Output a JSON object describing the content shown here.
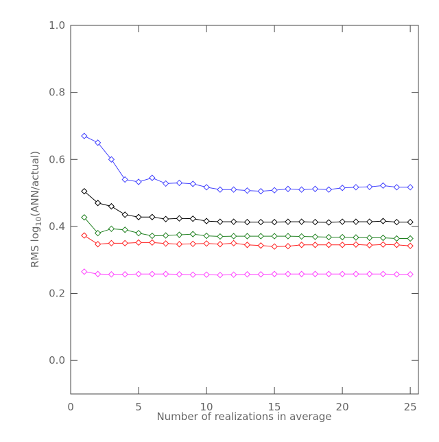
{
  "chart_data": {
    "type": "line",
    "xlabel": "Number of realizations in average",
    "ylabel": {
      "main": "RMS log",
      "sub": "10",
      "rest": "(ANN/actual)"
    },
    "x": [
      1,
      2,
      3,
      4,
      5,
      6,
      7,
      8,
      9,
      10,
      11,
      12,
      13,
      14,
      15,
      16,
      17,
      18,
      19,
      20,
      21,
      22,
      23,
      24,
      25
    ],
    "series": [
      {
        "color": "#4040ff",
        "values": [
          0.67,
          0.65,
          0.6,
          0.54,
          0.533,
          0.545,
          0.528,
          0.53,
          0.527,
          0.517,
          0.51,
          0.51,
          0.507,
          0.505,
          0.508,
          0.512,
          0.51,
          0.512,
          0.51,
          0.515,
          0.517,
          0.518,
          0.522,
          0.517,
          0.517
        ]
      },
      {
        "color": "#000000",
        "values": [
          0.505,
          0.47,
          0.46,
          0.435,
          0.428,
          0.428,
          0.422,
          0.424,
          0.423,
          0.416,
          0.414,
          0.414,
          0.413,
          0.413,
          0.413,
          0.414,
          0.414,
          0.413,
          0.412,
          0.414,
          0.414,
          0.414,
          0.416,
          0.413,
          0.413
        ]
      },
      {
        "color": "#208020",
        "values": [
          0.427,
          0.38,
          0.393,
          0.39,
          0.38,
          0.372,
          0.373,
          0.375,
          0.377,
          0.372,
          0.37,
          0.371,
          0.371,
          0.371,
          0.371,
          0.371,
          0.37,
          0.369,
          0.368,
          0.368,
          0.367,
          0.366,
          0.366,
          0.364,
          0.364
        ]
      },
      {
        "color": "#ff2020",
        "values": [
          0.373,
          0.347,
          0.35,
          0.35,
          0.352,
          0.352,
          0.349,
          0.347,
          0.348,
          0.349,
          0.347,
          0.35,
          0.345,
          0.343,
          0.34,
          0.341,
          0.345,
          0.345,
          0.345,
          0.345,
          0.346,
          0.344,
          0.346,
          0.345,
          0.342
        ]
      },
      {
        "color": "#ff40ff",
        "values": [
          0.265,
          0.258,
          0.257,
          0.257,
          0.258,
          0.258,
          0.258,
          0.257,
          0.256,
          0.256,
          0.255,
          0.256,
          0.257,
          0.257,
          0.258,
          0.258,
          0.258,
          0.258,
          0.258,
          0.258,
          0.258,
          0.258,
          0.258,
          0.257,
          0.257
        ]
      }
    ],
    "marker": "diamond",
    "xlim": [
      0,
      25.6
    ],
    "ylim": [
      -0.1,
      1.0
    ],
    "xticks": [
      0,
      5,
      10,
      15,
      20,
      25
    ],
    "yticks": [
      {
        "value": 0.0,
        "label": "0.0"
      },
      {
        "value": 0.2,
        "label": "0.2"
      },
      {
        "value": 0.4,
        "label": "0.4"
      },
      {
        "value": 0.6,
        "label": "0.6"
      },
      {
        "value": 0.8,
        "label": "0.8"
      },
      {
        "value": 1.0,
        "label": "1.0"
      }
    ]
  }
}
